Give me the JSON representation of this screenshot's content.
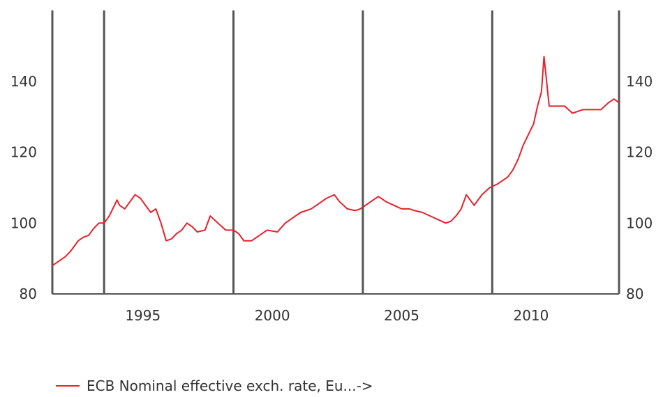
{
  "chart_data": {
    "type": "line",
    "title": "",
    "xlabel": "",
    "ylabel": "",
    "xlim": [
      1992.0,
      2013.9
    ],
    "ylim": [
      80,
      160
    ],
    "x_ticks": [
      {
        "value": 1995,
        "label": "1995"
      },
      {
        "value": 2000,
        "label": "2000"
      },
      {
        "value": 2005,
        "label": "2005"
      },
      {
        "value": 2010,
        "label": "2010"
      }
    ],
    "y_ticks": [
      {
        "value": 80,
        "label": "80"
      },
      {
        "value": 100,
        "label": "100"
      },
      {
        "value": 120,
        "label": "120"
      },
      {
        "value": 140,
        "label": "140"
      }
    ],
    "vertical_lines": [
      1992.0,
      1994.0,
      1999.0,
      2004.0,
      2009.0,
      2013.9
    ],
    "grid": false,
    "legend_position": "bottom-left",
    "colors": {
      "series": "#e8202a",
      "axis": "#555555"
    },
    "series": [
      {
        "name": "ECB Nominal effective exch. rate, Eu...->",
        "x": [
          1992.0,
          1992.1,
          1992.3,
          1992.5,
          1992.7,
          1992.8,
          1993.0,
          1993.2,
          1993.4,
          1993.6,
          1993.8,
          1994.0,
          1994.2,
          1994.4,
          1994.5,
          1994.6,
          1994.8,
          1995.0,
          1995.2,
          1995.4,
          1995.6,
          1995.8,
          1996.0,
          1996.2,
          1996.4,
          1996.6,
          1996.8,
          1997.0,
          1997.2,
          1997.4,
          1997.6,
          1997.9,
          1998.1,
          1998.4,
          1998.7,
          1999.0,
          1999.2,
          1999.4,
          1999.7,
          2000.0,
          2000.3,
          2000.7,
          2001.0,
          2001.3,
          2001.6,
          2002.0,
          2002.3,
          2002.6,
          2002.9,
          2003.1,
          2003.4,
          2003.7,
          2003.9,
          2004.1,
          2004.3,
          2004.6,
          2004.9,
          2005.2,
          2005.5,
          2005.8,
          2006.0,
          2006.3,
          2006.6,
          2006.9,
          2007.2,
          2007.4,
          2007.6,
          2007.8,
          2008.0,
          2008.3,
          2008.6,
          2008.9,
          2009.2,
          2009.4,
          2009.6,
          2009.8,
          2010.0,
          2010.2,
          2010.4,
          2010.6,
          2010.75,
          2010.9,
          2011.0,
          2011.2,
          2011.5,
          2011.8,
          2012.1,
          2012.5,
          2012.9,
          2013.2,
          2013.5,
          2013.7,
          2013.9
        ],
        "values": [
          88,
          88.5,
          89.5,
          90.5,
          92,
          93,
          95,
          96,
          96.5,
          98.5,
          100,
          100,
          102,
          105,
          106.5,
          105,
          104,
          106,
          108,
          107,
          105,
          103,
          104,
          100,
          95,
          95.5,
          97,
          98,
          100,
          99,
          97.5,
          98,
          102,
          100,
          98,
          98,
          97,
          95,
          95,
          96.5,
          98,
          97.5,
          100,
          101.5,
          103,
          104,
          105.5,
          107,
          108,
          106,
          104,
          103.5,
          104,
          105,
          106,
          107.5,
          106,
          105,
          104,
          104,
          103.5,
          103,
          102,
          101,
          100,
          100.5,
          102,
          104,
          108,
          105,
          108,
          110,
          111,
          112,
          113,
          115,
          118,
          122,
          125,
          128,
          133,
          137,
          147,
          133,
          133,
          133,
          131,
          132,
          132,
          132,
          134,
          135,
          134
        ]
      }
    ]
  },
  "legend": {
    "label": "ECB Nominal effective exch. rate, Eu...->"
  }
}
